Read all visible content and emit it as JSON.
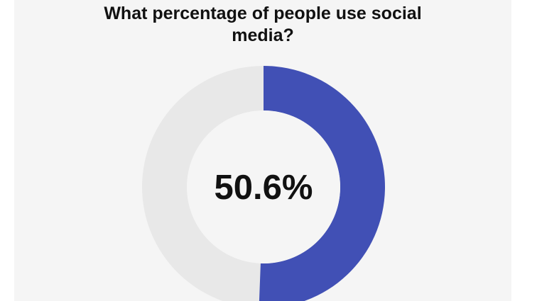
{
  "chart_data": {
    "type": "pie",
    "title_lines": [
      "What percentage of people use social",
      "media?"
    ],
    "value_percent": 50.6,
    "center_label": "50.6%",
    "colors": {
      "value": "#4150b5",
      "remainder": "#e8e8e8",
      "hole": "#f5f5f5",
      "label": "#111111"
    }
  }
}
